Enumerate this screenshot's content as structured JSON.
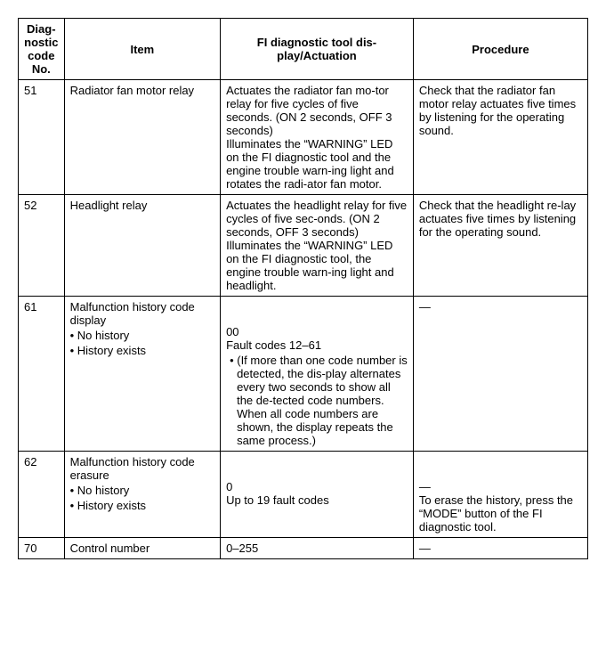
{
  "headers": {
    "code": "Diag-nostic code No.",
    "item": "Item",
    "disp": "FI diagnostic tool dis-play/Actuation",
    "proc": "Procedure"
  },
  "rows": {
    "r51": {
      "code": "51",
      "item": "Radiator fan motor relay",
      "disp": "Actuates the radiator fan mo-tor relay for five cycles of five seconds. (ON 2 seconds, OFF 3 seconds)\nIlluminates the “WARNING” LED on the FI diagnostic tool and the engine trouble warn-ing light and rotates the radi-ator fan motor.",
      "proc": "Check that the radiator fan motor relay actuates five times by listening for the operating sound."
    },
    "r52": {
      "code": "52",
      "item": "Headlight relay",
      "disp": "Actuates the headlight relay for five cycles of five sec-onds. (ON 2 seconds, OFF 3 seconds)\nIlluminates the “WARNING” LED on the FI diagnostic tool, the engine trouble warn-ing light and headlight.",
      "proc": "Check that the headlight re-lay actuates five times by listening for the operating sound."
    },
    "r61": {
      "code": "61",
      "item_main": "Malfunction history code display",
      "item_b1": "• No history",
      "item_b2": "• History exists",
      "disp_v1": "00",
      "disp_v2": "Fault codes 12–61",
      "disp_note": "• (If more than one code number is detected, the dis-play alternates every two seconds to show all the de-tected code numbers. When all code numbers are shown, the display repeats the same process.)",
      "proc": "—"
    },
    "r62": {
      "code": "62",
      "item_main": "Malfunction history code erasure",
      "item_b1": "• No history",
      "item_b2": "• History exists",
      "disp_v1": "0",
      "disp_v2": "Up to 19 fault codes",
      "proc_v1": "—",
      "proc_v2": "To erase the history, press the “MODE” button of the FI diagnostic tool."
    },
    "r70": {
      "code": "70",
      "item": "Control number",
      "disp": "0–255",
      "proc": "—"
    }
  }
}
